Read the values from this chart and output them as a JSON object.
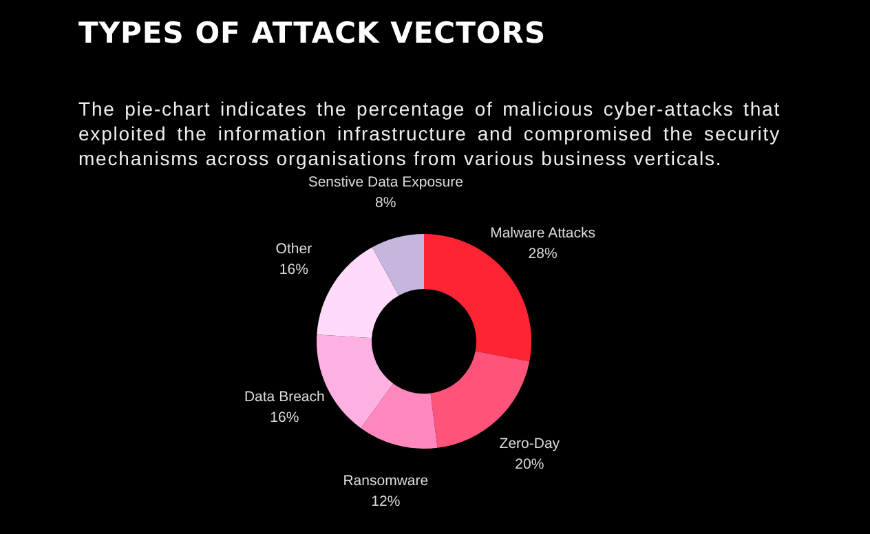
{
  "chart_data": {
    "type": "donut",
    "title": "TYPES OF ATTACK VECTORS",
    "subtitle": "The pie-chart indicates the percentage of malicious cyber-attacks that exploited the information infrastructure and compromised the security mechanisms across organisations from various business verticals.",
    "categories": [
      "Malware Attacks",
      "Zero-Day",
      "Ransomware",
      "Data Breach",
      "Other",
      "Senstive Data Exposure"
    ],
    "values": [
      28,
      20,
      12,
      16,
      16,
      8
    ],
    "value_labels": [
      "28%",
      "20%",
      "12%",
      "16%",
      "16%",
      "8%"
    ],
    "colors": [
      "#fe2434",
      "#ff547a",
      "#ff88bf",
      "#ffb0e3",
      "#ffdaf9",
      "#c6b5dc"
    ]
  }
}
